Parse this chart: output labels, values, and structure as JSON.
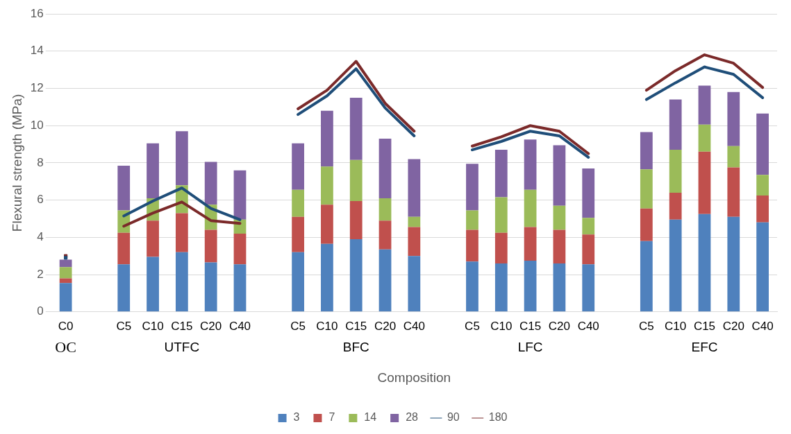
{
  "chart_data": {
    "type": "bar",
    "stacked": true,
    "xlabel": "Composition",
    "ylabel": "Flexural strength (MPa)",
    "categories": [
      "C0",
      null,
      "C5",
      "C10",
      "C15",
      "C20",
      "C40",
      null,
      "C5",
      "C10",
      "C15",
      "C20",
      "C40",
      null,
      "C5",
      "C10",
      "C15",
      "C20",
      "C40",
      null,
      "C5",
      "C10",
      "C15",
      "C20",
      "C40"
    ],
    "annotations": [
      "OC",
      "UTFC",
      "BFC",
      "LFC",
      "EFC"
    ],
    "ylim": [
      0,
      16
    ],
    "yticks": [
      0,
      2,
      4,
      6,
      8,
      10,
      12,
      14,
      16
    ],
    "grid": "y",
    "legend": "bottom",
    "series": [
      {
        "name": "3",
        "color": "#4f81bd",
        "values": [
          1.55,
          null,
          2.55,
          2.95,
          3.2,
          2.65,
          2.55,
          null,
          3.2,
          3.65,
          3.9,
          3.35,
          3.0,
          null,
          2.7,
          2.6,
          2.75,
          2.6,
          2.55,
          null,
          3.8,
          4.95,
          5.25,
          5.1,
          4.8
        ]
      },
      {
        "name": "7",
        "color": "#c0504d",
        "values": [
          0.25,
          null,
          1.7,
          1.95,
          2.1,
          1.75,
          1.65,
          null,
          1.9,
          2.1,
          2.05,
          1.55,
          1.55,
          null,
          1.7,
          1.65,
          1.8,
          1.8,
          1.6,
          null,
          1.75,
          1.45,
          3.35,
          2.65,
          1.45
        ]
      },
      {
        "name": "14",
        "color": "#9bbb59",
        "values": [
          0.6,
          null,
          1.2,
          1.2,
          1.5,
          1.35,
          0.75,
          null,
          1.45,
          2.05,
          2.2,
          1.2,
          0.55,
          null,
          1.05,
          1.9,
          2.0,
          1.3,
          0.9,
          null,
          2.1,
          2.3,
          1.45,
          1.15,
          1.1
        ]
      },
      {
        "name": "28",
        "color": "#8064a2",
        "values": [
          0.4,
          null,
          2.4,
          2.95,
          2.9,
          2.3,
          2.65,
          null,
          2.5,
          3.0,
          3.35,
          3.2,
          3.1,
          null,
          2.5,
          2.55,
          2.7,
          3.25,
          2.65,
          null,
          2.0,
          2.7,
          2.1,
          2.9,
          3.3
        ]
      },
      {
        "name": "90",
        "type": "line",
        "color": "#1f4e79",
        "values": [
          2.9,
          null,
          5.15,
          5.95,
          6.65,
          5.55,
          4.95,
          null,
          10.6,
          11.6,
          13.05,
          10.95,
          9.45,
          null,
          8.7,
          9.15,
          9.7,
          9.45,
          8.3,
          null,
          11.4,
          12.3,
          13.15,
          12.75,
          11.5
        ]
      },
      {
        "name": "180",
        "type": "line",
        "color": "#7b2a2a",
        "values": [
          3.0,
          null,
          4.6,
          5.3,
          5.9,
          4.9,
          4.75,
          null,
          10.9,
          11.9,
          13.45,
          11.2,
          9.7,
          null,
          8.9,
          9.4,
          10.0,
          9.7,
          8.5,
          null,
          11.9,
          12.95,
          13.8,
          13.35,
          12.05
        ]
      }
    ]
  }
}
